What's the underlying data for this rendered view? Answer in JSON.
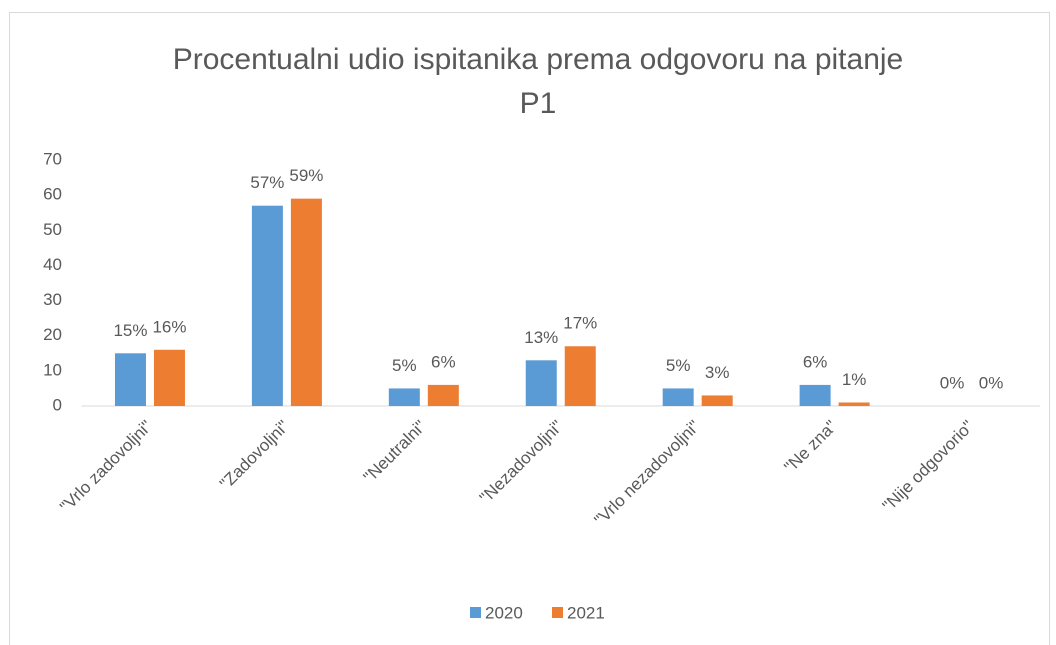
{
  "chart_data": {
    "type": "bar",
    "title": "Procentualni udio ispitanika prema odgovoru na pitanje P1",
    "categories": [
      "\"Vrlo zadovoljni\"",
      "\"Zadovoljni\"",
      "\"Neutralni\"",
      "\"Nezadovoljni\"",
      "\"Vrlo nezadovoljni\"",
      "\"Ne zna\"",
      "\"Nije odgovorio\""
    ],
    "series": [
      {
        "name": "2020",
        "color": "#5b9bd5",
        "values": [
          15,
          57,
          5,
          13,
          5,
          6,
          0
        ],
        "value_labels": [
          "15%",
          "57%",
          "5%",
          "13%",
          "5%",
          "6%",
          "0%"
        ]
      },
      {
        "name": "2021",
        "color": "#ed7d31",
        "values": [
          16,
          59,
          6,
          17,
          3,
          1,
          0
        ],
        "value_labels": [
          "16%",
          "59%",
          "6%",
          "17%",
          "3%",
          "1%",
          "0%"
        ]
      }
    ],
    "ylim": [
      0,
      70
    ],
    "yticks": [
      0,
      10,
      20,
      30,
      40,
      50,
      60,
      70
    ],
    "grid": false,
    "legend": "bottom"
  }
}
